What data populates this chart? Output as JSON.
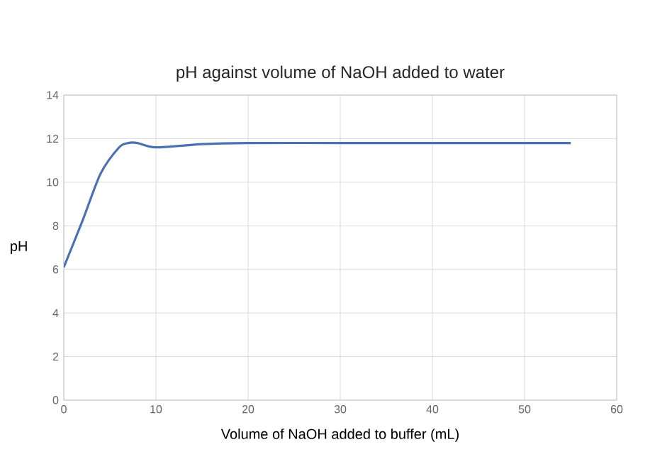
{
  "chart_data": {
    "type": "line",
    "title": "pH against volume of NaOH added to water",
    "xlabel": "Volume of NaOH added to buffer (mL)",
    "ylabel": "pH",
    "x": [
      0,
      2,
      4,
      6,
      7,
      8,
      10,
      15,
      20,
      30,
      40,
      50,
      55
    ],
    "series": [
      {
        "color": "#4a72b0",
        "values": [
          6.1,
          8.2,
          10.4,
          11.6,
          11.8,
          11.8,
          11.6,
          11.75,
          11.8,
          11.8,
          11.8,
          11.8,
          11.8
        ]
      }
    ],
    "xlim": [
      0,
      60
    ],
    "xticks": [
      0,
      10,
      20,
      30,
      40,
      50,
      60
    ],
    "ylim": [
      0,
      14
    ],
    "yticks": [
      0,
      2,
      4,
      6,
      8,
      10,
      12,
      14
    ],
    "grid": true,
    "marker": "none",
    "line_style": "solid"
  }
}
